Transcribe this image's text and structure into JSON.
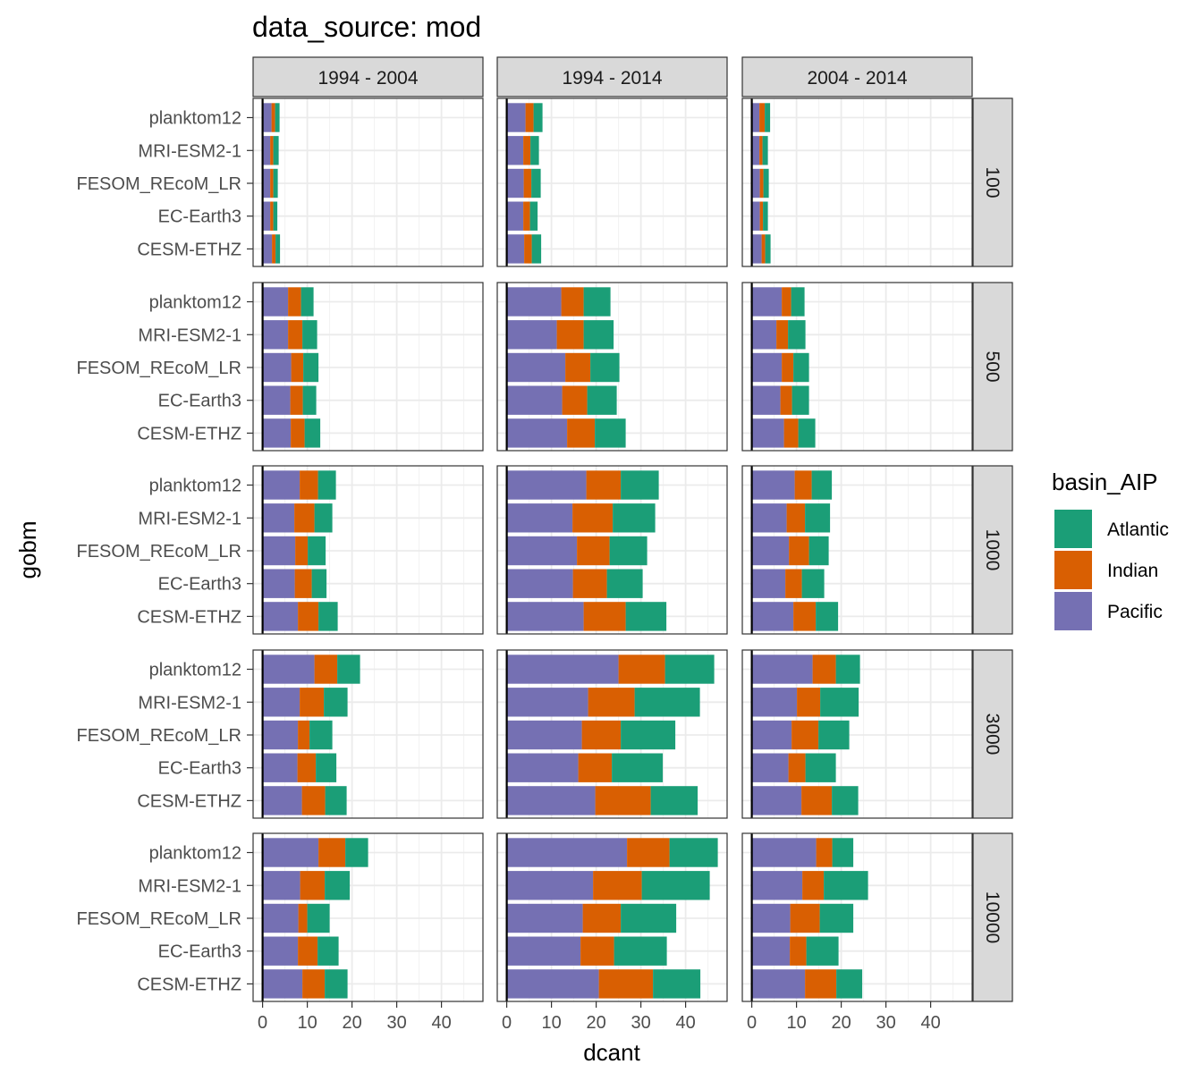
{
  "chart_data": {
    "type": "bar",
    "orientation": "horizontal",
    "stacked": true,
    "title": "data_source: mod",
    "xlabel": "dcant",
    "ylabel": "gobm",
    "xlim": [
      0,
      48
    ],
    "x_ticks": [
      0,
      10,
      20,
      30,
      40
    ],
    "x_tick_labels": [
      "0",
      "10",
      "20",
      "30",
      "40"
    ],
    "grid": true,
    "legend": {
      "title": "basin_AIP",
      "position": "right",
      "entries": [
        {
          "name": "Atlantic",
          "color": "#1B9E77"
        },
        {
          "name": "Indian",
          "color": "#D95F02"
        },
        {
          "name": "Pacific",
          "color": "#7570B3"
        }
      ]
    },
    "stack_order": [
      "Pacific",
      "Indian",
      "Atlantic"
    ],
    "categories": [
      "planktom12",
      "MRI-ESM2-1",
      "FESOM_REcoM_LR",
      "EC-Earth3",
      "CESM-ETHZ"
    ],
    "col_facets": [
      "1994 - 2004",
      "1994 - 2014",
      "2004 - 2014"
    ],
    "row_facets": [
      "100",
      "500",
      "1000",
      "3000",
      "10000"
    ],
    "panels": [
      {
        "row": "100",
        "col": "1994 - 2004",
        "Pacific": [
          2.0,
          1.7,
          1.7,
          1.7,
          2.1
        ],
        "Indian": [
          0.8,
          0.7,
          0.7,
          0.7,
          0.8
        ],
        "Atlantic": [
          1.0,
          1.2,
          1.0,
          0.9,
          1.0
        ]
      },
      {
        "row": "100",
        "col": "1994 - 2014",
        "Pacific": [
          4.2,
          3.7,
          3.8,
          3.7,
          3.9
        ],
        "Indian": [
          1.8,
          1.6,
          1.7,
          1.5,
          1.7
        ],
        "Atlantic": [
          2.0,
          1.9,
          2.1,
          1.7,
          2.1
        ]
      },
      {
        "row": "100",
        "col": "2004 - 2014",
        "Pacific": [
          1.7,
          1.7,
          1.8,
          1.8,
          2.2
        ],
        "Indian": [
          1.2,
          0.7,
          0.8,
          0.7,
          0.8
        ],
        "Atlantic": [
          1.2,
          1.2,
          1.2,
          1.1,
          1.2
        ]
      },
      {
        "row": "500",
        "col": "1994 - 2004",
        "Pacific": [
          5.7,
          5.7,
          6.4,
          6.2,
          6.3
        ],
        "Indian": [
          2.9,
          3.2,
          2.7,
          2.8,
          3.1
        ],
        "Atlantic": [
          2.8,
          3.3,
          3.4,
          3.0,
          3.5
        ]
      },
      {
        "row": "500",
        "col": "1994 - 2014",
        "Pacific": [
          12.2,
          11.2,
          13.1,
          12.4,
          13.5
        ],
        "Indian": [
          5.0,
          6.0,
          5.6,
          5.6,
          6.2
        ],
        "Atlantic": [
          6.0,
          6.7,
          6.5,
          6.6,
          6.9
        ]
      },
      {
        "row": "500",
        "col": "2004 - 2014",
        "Pacific": [
          6.7,
          5.5,
          6.7,
          6.4,
          7.2
        ],
        "Indian": [
          2.1,
          2.6,
          2.6,
          2.6,
          3.2
        ],
        "Atlantic": [
          3.0,
          3.9,
          3.5,
          3.8,
          3.8
        ]
      },
      {
        "row": "1000",
        "col": "1994 - 2004",
        "Pacific": [
          8.3,
          7.1,
          7.3,
          7.2,
          7.9
        ],
        "Indian": [
          4.1,
          4.5,
          2.8,
          3.8,
          4.6
        ],
        "Atlantic": [
          4.0,
          4.0,
          4.0,
          3.3,
          4.3
        ]
      },
      {
        "row": "1000",
        "col": "1994 - 2014",
        "Pacific": [
          17.8,
          14.7,
          15.7,
          14.8,
          17.2
        ],
        "Indian": [
          7.7,
          9.0,
          7.3,
          7.6,
          9.4
        ],
        "Atlantic": [
          8.5,
          9.5,
          8.4,
          8.0,
          9.1
        ]
      },
      {
        "row": "1000",
        "col": "2004 - 2014",
        "Pacific": [
          9.6,
          7.8,
          8.3,
          7.5,
          9.3
        ],
        "Indian": [
          3.8,
          4.1,
          4.5,
          3.7,
          5.0
        ],
        "Atlantic": [
          4.5,
          5.6,
          4.4,
          5.0,
          5.0
        ]
      },
      {
        "row": "3000",
        "col": "1994 - 2004",
        "Pacific": [
          11.6,
          8.3,
          7.9,
          7.8,
          8.8
        ],
        "Indian": [
          5.1,
          5.4,
          2.6,
          4.1,
          5.2
        ],
        "Atlantic": [
          5.1,
          5.3,
          5.1,
          4.6,
          4.8
        ]
      },
      {
        "row": "3000",
        "col": "1994 - 2014",
        "Pacific": [
          25.0,
          18.2,
          16.8,
          16.0,
          19.8
        ],
        "Indian": [
          10.4,
          10.4,
          8.7,
          7.5,
          12.4
        ],
        "Atlantic": [
          11.0,
          14.6,
          12.2,
          11.4,
          10.5
        ]
      },
      {
        "row": "3000",
        "col": "2004 - 2014",
        "Pacific": [
          13.6,
          10.1,
          8.9,
          8.2,
          11.1
        ],
        "Indian": [
          5.2,
          5.2,
          6.0,
          3.8,
          6.8
        ],
        "Atlantic": [
          5.4,
          8.6,
          6.9,
          6.8,
          5.9
        ]
      },
      {
        "row": "10000",
        "col": "1994 - 2004",
        "Pacific": [
          12.5,
          8.4,
          8.0,
          7.9,
          8.9
        ],
        "Indian": [
          6.0,
          5.5,
          2.0,
          4.4,
          5.0
        ],
        "Atlantic": [
          5.1,
          5.6,
          5.0,
          4.7,
          5.1
        ]
      },
      {
        "row": "10000",
        "col": "1994 - 2014",
        "Pacific": [
          26.9,
          19.3,
          17.0,
          16.5,
          20.6
        ],
        "Indian": [
          9.5,
          10.9,
          8.5,
          7.5,
          12.1
        ],
        "Atlantic": [
          10.8,
          15.2,
          12.4,
          11.8,
          10.6
        ]
      },
      {
        "row": "10000",
        "col": "2004 - 2014",
        "Pacific": [
          14.4,
          11.3,
          8.6,
          8.5,
          11.9
        ],
        "Indian": [
          3.6,
          4.8,
          6.6,
          3.7,
          7.0
        ],
        "Atlantic": [
          4.7,
          9.9,
          7.5,
          7.2,
          5.8
        ]
      }
    ]
  }
}
